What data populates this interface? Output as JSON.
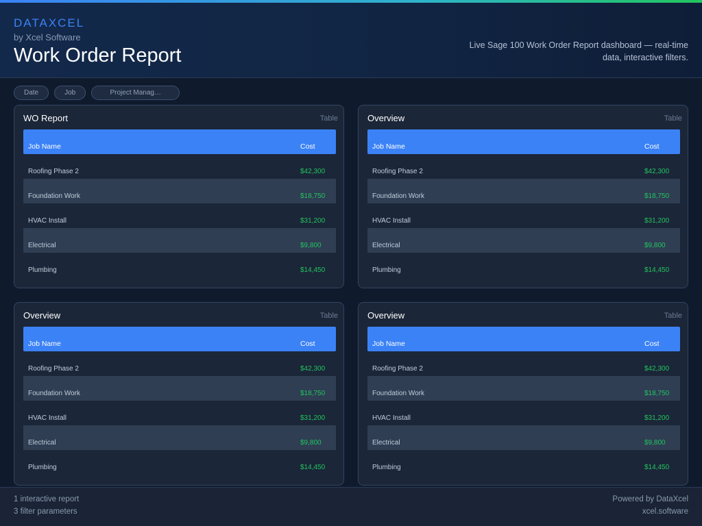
{
  "header": {
    "brand": "DATAXCEL",
    "byline": "by Xcel Software",
    "title": "Work Order Report",
    "description": "Live Sage 100 Work Order Report dashboard — real-time data, interactive filters."
  },
  "filters": [
    {
      "label": "Date"
    },
    {
      "label": "Job"
    },
    {
      "label": "Project Manag…"
    }
  ],
  "table": {
    "columns": [
      "Job Name",
      "Cost"
    ],
    "rows": [
      {
        "name": "Roofing Phase 2",
        "cost": "$42,300"
      },
      {
        "name": "Foundation Work",
        "cost": "$18,750"
      },
      {
        "name": "HVAC Install",
        "cost": "$31,200"
      },
      {
        "name": "Electrical",
        "cost": "$9,800"
      },
      {
        "name": "Plumbing",
        "cost": "$14,450"
      }
    ]
  },
  "panels": [
    {
      "title": "WO Report",
      "type": "Table"
    },
    {
      "title": "Overview",
      "type": "Table"
    },
    {
      "title": "Overview",
      "type": "Table"
    },
    {
      "title": "Overview",
      "type": "Table"
    }
  ],
  "footer": {
    "left_line1": "1 interactive report",
    "left_line2": "3 filter parameters",
    "right_line1": "Powered by DataXcel",
    "right_line2": "xcel.software"
  },
  "colors": {
    "accent": "#3b82f6",
    "cost_green": "#22c55e",
    "background": "#0f1a2d",
    "panel": "#1b2638"
  }
}
